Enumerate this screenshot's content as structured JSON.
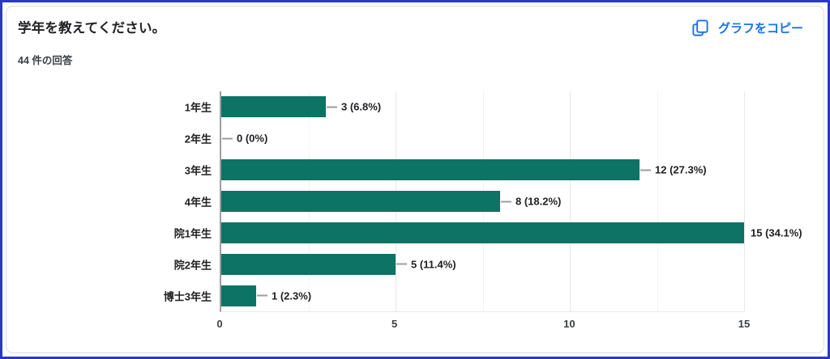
{
  "header": {
    "title": "学年を教えてください。",
    "response_count": "44 件の回答",
    "copy_button_label": "グラフをコピー"
  },
  "chart_data": {
    "type": "bar",
    "orientation": "horizontal",
    "title": "学年を教えてください。",
    "total_responses": 44,
    "categories": [
      "1年生",
      "2年生",
      "3年生",
      "4年生",
      "院1年生",
      "院2年生",
      "博士3年生"
    ],
    "values": [
      3,
      0,
      12,
      8,
      15,
      5,
      1
    ],
    "value_labels": [
      "3 (6.8%)",
      "0 (0%)",
      "12 (27.3%)",
      "8 (18.2%)",
      "15 (34.1%)",
      "5 (11.4%)",
      "1 (2.3%)"
    ],
    "x_ticks": [
      "0",
      "5",
      "10",
      "15"
    ],
    "x_tick_values": [
      0,
      5,
      10,
      15
    ],
    "xlim": [
      0,
      15
    ],
    "minor_grid_step": 2.5,
    "legend": "none",
    "grid": "vertical-only"
  },
  "colors": {
    "bar": "#0d7364",
    "accent_blue": "#1a73e8",
    "frame_border": "#2a38c5",
    "axis": "#9e9e9e",
    "text": "#202124"
  },
  "icons": {
    "copy_icon": "content-copy"
  }
}
